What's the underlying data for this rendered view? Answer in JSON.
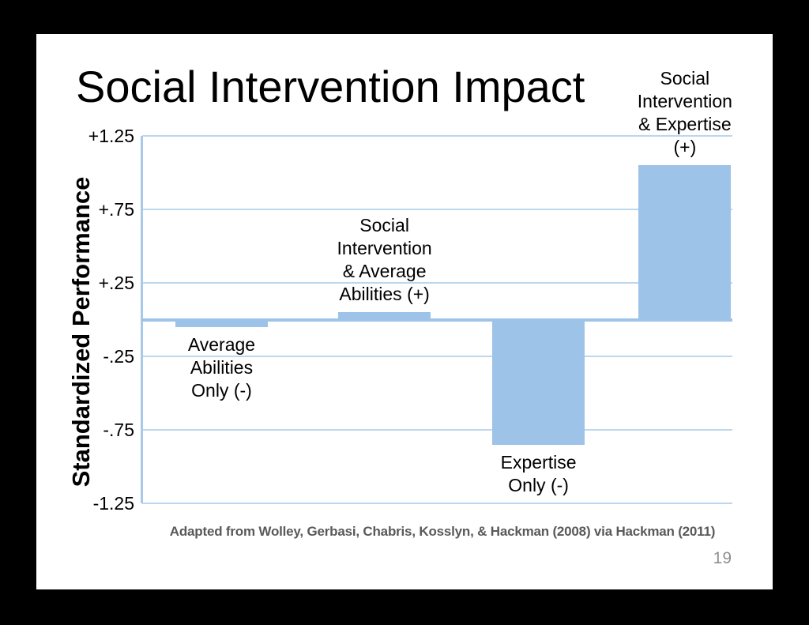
{
  "slide": {
    "title": "Social Intervention Impact",
    "caption": "Adapted from Wolley, Gerbasi, Chabris, Kosslyn, & Hackman (2008) via Hackman (2011)",
    "page_number": "19"
  },
  "chart_data": {
    "type": "bar",
    "title": "Social Intervention Impact",
    "xlabel": "",
    "ylabel": "Standardized Performance",
    "ylim": [
      -1.25,
      1.25
    ],
    "grid": true,
    "legend": "none",
    "bar_color": "#9ec3e8",
    "gridline_color": "#bdd7ee",
    "yticks": [
      {
        "value": 1.25,
        "label": "+1.25"
      },
      {
        "value": 0.75,
        "label": "+.75"
      },
      {
        "value": 0.25,
        "label": "+.25"
      },
      {
        "value": -0.25,
        "label": "-.25"
      },
      {
        "value": -0.75,
        "label": "-.75"
      },
      {
        "value": -1.25,
        "label": "-1.25"
      }
    ],
    "categories": [
      "Average Abilities Only (-)",
      "Social Intervention & Average Abilities (+)",
      "Expertise Only (-)",
      "Social Intervention & Expertise (+)"
    ],
    "values": [
      -0.05,
      0.05,
      -0.85,
      1.05
    ],
    "bars": [
      {
        "category": "Average Abilities Only (-)",
        "value": -0.05,
        "label_lines": [
          "Average",
          "Abilities",
          "Only (-)"
        ],
        "label_placement": "below",
        "x_frac": 0.056,
        "w_frac": 0.157
      },
      {
        "category": "Social Intervention & Average Abilities (+)",
        "value": 0.05,
        "label_lines": [
          "Social",
          "Intervention",
          "& Average",
          "Abilities (+)"
        ],
        "label_placement": "above",
        "x_frac": 0.332,
        "w_frac": 0.157
      },
      {
        "category": "Expertise Only (-)",
        "value": -0.85,
        "label_lines": [
          "Expertise",
          "Only (-)"
        ],
        "label_placement": "below",
        "x_frac": 0.593,
        "w_frac": 0.157
      },
      {
        "category": "Social Intervention & Expertise (+)",
        "value": 1.05,
        "label_lines": [
          "Social",
          "Intervention",
          "& Expertise",
          "(+)"
        ],
        "label_placement": "above",
        "x_frac": 0.841,
        "w_frac": 0.157
      }
    ]
  }
}
